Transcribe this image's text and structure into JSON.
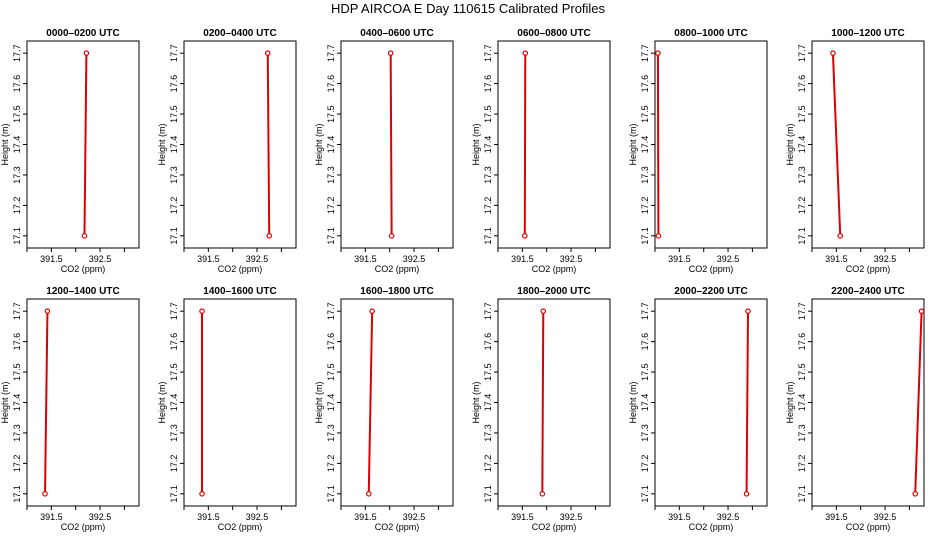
{
  "title": "HDP AIRCOA E  Day 110615  Calibrated Profiles",
  "chart_data": {
    "type": "line",
    "xlabel": "CO2 (ppm)",
    "ylabel": "Height (m)",
    "xlim": [
      391.0,
      393.3
    ],
    "ylim": [
      17.06,
      17.74
    ],
    "xticks": [
      391.5,
      392.5
    ],
    "xtick_labels": [
      "391.5",
      "392.5"
    ],
    "yticks": [
      17.1,
      17.2,
      17.3,
      17.4,
      17.5,
      17.6,
      17.7
    ],
    "ytick_labels": [
      "17.1",
      "17.2",
      "17.3",
      "17.4",
      "17.5",
      "17.6",
      "17.7"
    ],
    "line_color": "#dd0000",
    "panels": [
      {
        "title": "0000–0200 UTC",
        "points": [
          {
            "x": 392.18,
            "y": 17.1
          },
          {
            "x": 392.22,
            "y": 17.7
          }
        ]
      },
      {
        "title": "0200–0400 UTC",
        "points": [
          {
            "x": 392.75,
            "y": 17.1
          },
          {
            "x": 392.72,
            "y": 17.7
          }
        ]
      },
      {
        "title": "0400–0600 UTC",
        "points": [
          {
            "x": 392.04,
            "y": 17.1
          },
          {
            "x": 392.02,
            "y": 17.7
          }
        ]
      },
      {
        "title": "0600–0800 UTC",
        "points": [
          {
            "x": 391.55,
            "y": 17.1
          },
          {
            "x": 391.56,
            "y": 17.7
          }
        ]
      },
      {
        "title": "0800–1000 UTC",
        "points": [
          {
            "x": 391.07,
            "y": 17.1
          },
          {
            "x": 391.06,
            "y": 17.7
          }
        ]
      },
      {
        "title": "1000–1200 UTC",
        "points": [
          {
            "x": 391.58,
            "y": 17.1
          },
          {
            "x": 391.43,
            "y": 17.7
          }
        ]
      },
      {
        "title": "1200–1400 UTC",
        "points": [
          {
            "x": 391.37,
            "y": 17.1
          },
          {
            "x": 391.42,
            "y": 17.7
          }
        ]
      },
      {
        "title": "1400–1600 UTC",
        "points": [
          {
            "x": 391.37,
            "y": 17.1
          },
          {
            "x": 391.37,
            "y": 17.7
          }
        ]
      },
      {
        "title": "1600–1800 UTC",
        "points": [
          {
            "x": 391.57,
            "y": 17.1
          },
          {
            "x": 391.64,
            "y": 17.7
          }
        ]
      },
      {
        "title": "1800–2000 UTC",
        "points": [
          {
            "x": 391.91,
            "y": 17.1
          },
          {
            "x": 391.93,
            "y": 17.7
          }
        ]
      },
      {
        "title": "2000–2200 UTC",
        "points": [
          {
            "x": 392.88,
            "y": 17.1
          },
          {
            "x": 392.91,
            "y": 17.7
          }
        ]
      },
      {
        "title": "2200–2400 UTC",
        "points": [
          {
            "x": 393.12,
            "y": 17.1
          },
          {
            "x": 393.25,
            "y": 17.7
          }
        ]
      }
    ]
  }
}
